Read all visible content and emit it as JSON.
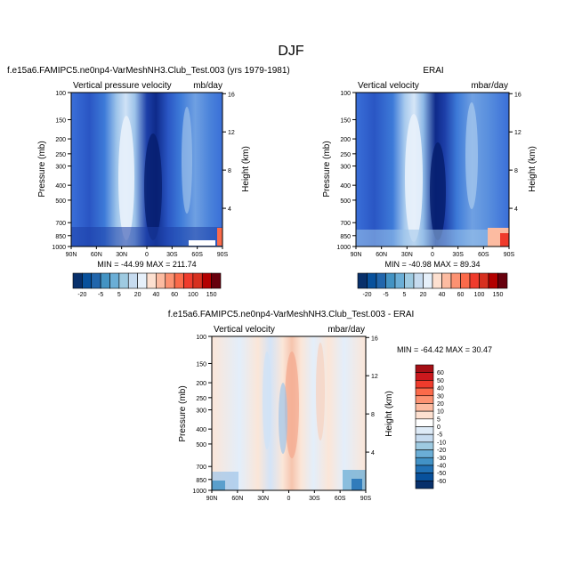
{
  "figure": {
    "title": "DJF"
  },
  "chart_data": [
    {
      "type": "heatmap",
      "panel_title": "f.e15a6.FAMIPC5.ne0np4-VarMeshNH3.Club_Test.003 (yrs 1979-1981)",
      "left_label": "Vertical pressure velocity",
      "right_label": "mb/day",
      "ylabel": "Pressure (mb)",
      "ylabel_right": "Height (km)",
      "x_ticks": [
        "90N",
        "60N",
        "30N",
        "0",
        "30S",
        "60S",
        "90S"
      ],
      "y_ticks": [
        "100",
        "150",
        "200",
        "250",
        "300",
        "400",
        "500",
        "700",
        "850",
        "1000"
      ],
      "y_ticks_right": [
        "16",
        "12",
        "8",
        "4"
      ],
      "stats": "MIN = -44.99  MAX = 211.74",
      "colorbar_labels": [
        "-20",
        "-5",
        "5",
        "20",
        "40",
        "60",
        "100",
        "150"
      ],
      "colorbar_colors": [
        "#08306b",
        "#08519c",
        "#2166ac",
        "#4393c3",
        "#6baed6",
        "#9ecae1",
        "#c6dbef",
        "#e6f0fa",
        "#fde0d0",
        "#fcbba1",
        "#fc9272",
        "#fb6a4a",
        "#ef3b2c",
        "#d7301f",
        "#b30000",
        "#67000d"
      ]
    },
    {
      "type": "heatmap",
      "panel_title": "ERAI",
      "left_label": "Vertical velocity",
      "right_label": "mbar/day",
      "ylabel": "Pressure (mb)",
      "ylabel_right": "Height (km)",
      "x_ticks": [
        "90N",
        "60N",
        "30N",
        "0",
        "30S",
        "60S",
        "90S"
      ],
      "y_ticks": [
        "100",
        "150",
        "200",
        "250",
        "300",
        "400",
        "500",
        "700",
        "850",
        "1000"
      ],
      "y_ticks_right": [
        "16",
        "12",
        "8",
        "4"
      ],
      "stats": "MIN = -40.98  MAX =  89.34",
      "colorbar_labels": [
        "-20",
        "-5",
        "5",
        "20",
        "40",
        "60",
        "100",
        "150"
      ],
      "colorbar_colors": [
        "#08306b",
        "#08519c",
        "#2166ac",
        "#4393c3",
        "#6baed6",
        "#9ecae1",
        "#c6dbef",
        "#e6f0fa",
        "#fde0d0",
        "#fcbba1",
        "#fc9272",
        "#fb6a4a",
        "#ef3b2c",
        "#d7301f",
        "#b30000",
        "#67000d"
      ]
    },
    {
      "type": "heatmap",
      "panel_title": "f.e15a6.FAMIPC5.ne0np4-VarMeshNH3.Club_Test.003 - ERAI",
      "left_label": "Vertical velocity",
      "right_label": "mbar/day",
      "ylabel": "Pressure (mb)",
      "ylabel_right": "Height (km)",
      "x_ticks": [
        "90N",
        "60N",
        "30N",
        "0",
        "30S",
        "60S",
        "90S"
      ],
      "y_ticks": [
        "100",
        "150",
        "200",
        "250",
        "300",
        "400",
        "500",
        "700",
        "850",
        "1000"
      ],
      "y_ticks_right": [
        "16",
        "12",
        "8",
        "4"
      ],
      "stats": "MIN = -64.42  MAX =  30.47",
      "colorbar_labels": [
        "60",
        "50",
        "40",
        "30",
        "20",
        "10",
        "5",
        "0",
        "-5",
        "-10",
        "-20",
        "-30",
        "-40",
        "-50",
        "-60"
      ],
      "colorbar_colors": [
        "#a50f15",
        "#cb181d",
        "#ef3b2c",
        "#fb6a4a",
        "#fc9272",
        "#fcbba1",
        "#fde0d0",
        "#ffffff",
        "#deebf7",
        "#c6dbef",
        "#9ecae1",
        "#6baed6",
        "#4292c6",
        "#2171b5",
        "#08519c",
        "#08306b"
      ]
    }
  ]
}
